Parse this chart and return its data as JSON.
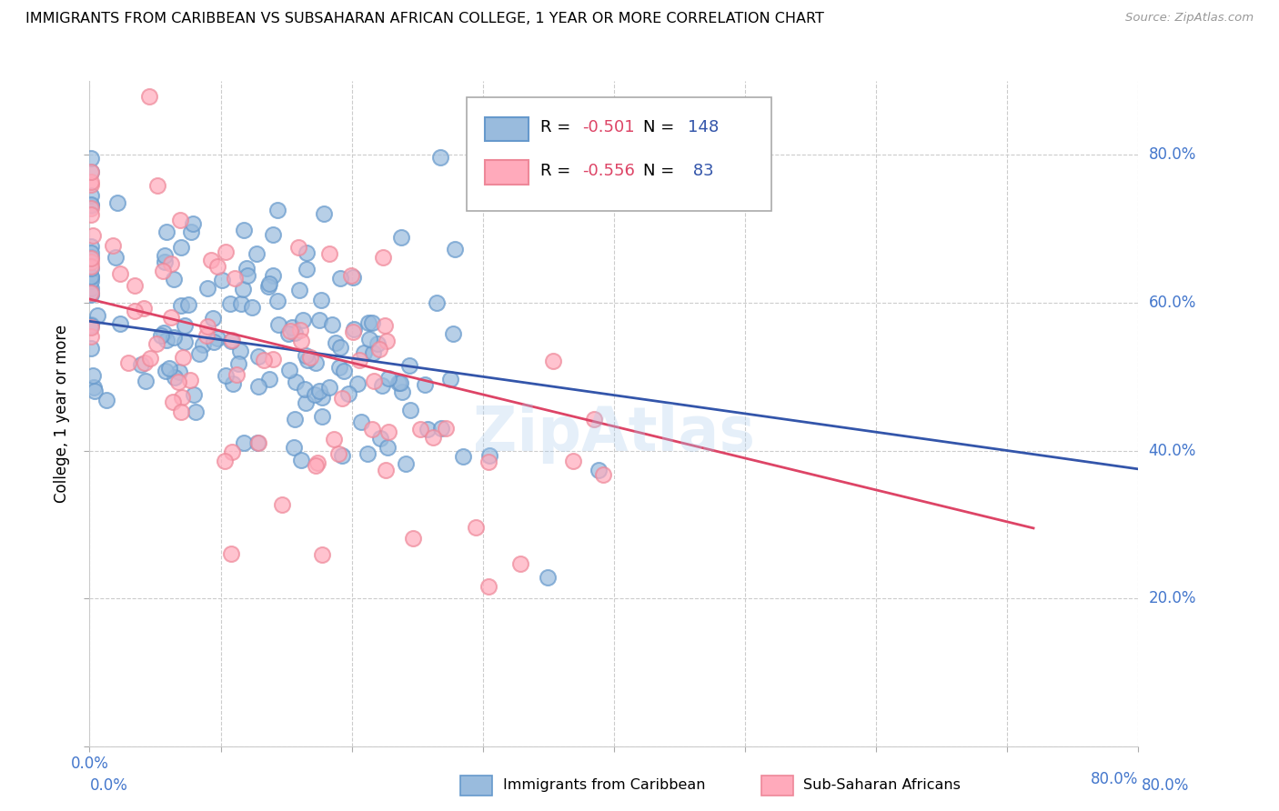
{
  "title": "IMMIGRANTS FROM CARIBBEAN VS SUBSAHARAN AFRICAN COLLEGE, 1 YEAR OR MORE CORRELATION CHART",
  "source": "Source: ZipAtlas.com",
  "ylabel": "College, 1 year or more",
  "xlim": [
    0.0,
    0.8
  ],
  "ylim": [
    0.0,
    0.9
  ],
  "x_ticks": [
    0.0,
    0.1,
    0.2,
    0.3,
    0.4,
    0.5,
    0.6,
    0.7,
    0.8
  ],
  "y_ticks": [
    0.0,
    0.2,
    0.4,
    0.6,
    0.8
  ],
  "blue_color": "#99bbdd",
  "blue_edge_color": "#6699cc",
  "pink_color": "#ffaabb",
  "pink_edge_color": "#ee8899",
  "blue_line_color": "#3355aa",
  "pink_line_color": "#dd4466",
  "tick_color": "#4477cc",
  "watermark": "ZipAtlas",
  "R_blue": -0.501,
  "N_blue": 148,
  "R_pink": -0.556,
  "N_pink": 83,
  "blue_line_x": [
    0.0,
    0.8
  ],
  "blue_line_y": [
    0.575,
    0.375
  ],
  "pink_line_x": [
    0.0,
    0.72
  ],
  "pink_line_y": [
    0.605,
    0.295
  ],
  "seed": 42,
  "legend_R_color": "#dd4466",
  "legend_N_color": "#3355aa"
}
